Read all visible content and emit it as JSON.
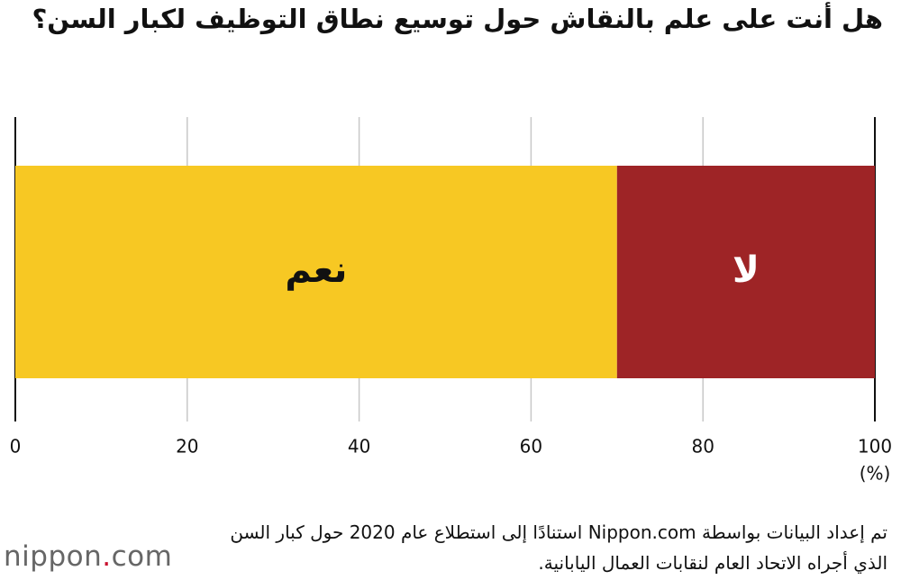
{
  "chart_data": {
    "type": "stacked-bar-horizontal",
    "title": "هل أنت على علم بالنقاش حول توسيع نطاق التوظيف لكبار السن؟",
    "categories": [
      null
    ],
    "series": [
      {
        "name": "نعم",
        "color": "#f7c823",
        "values": [
          70
        ]
      },
      {
        "name": "لا",
        "color": "#9e2426",
        "values": [
          30
        ]
      }
    ],
    "xlim": [
      0,
      100
    ],
    "xticks": [
      0,
      20,
      40,
      60,
      80,
      100
    ],
    "xlabel": "(%)",
    "grid": true
  },
  "note": "تم إعداد البيانات بواسطة Nippon.com استنادًا إلى استطلاع عام 2020 حول كبار السن الذي أجراه الاتحاد العام لنقابات العمال اليابانية.",
  "logo": {
    "name": "nippon",
    "dot": ".",
    "domain": "com"
  }
}
